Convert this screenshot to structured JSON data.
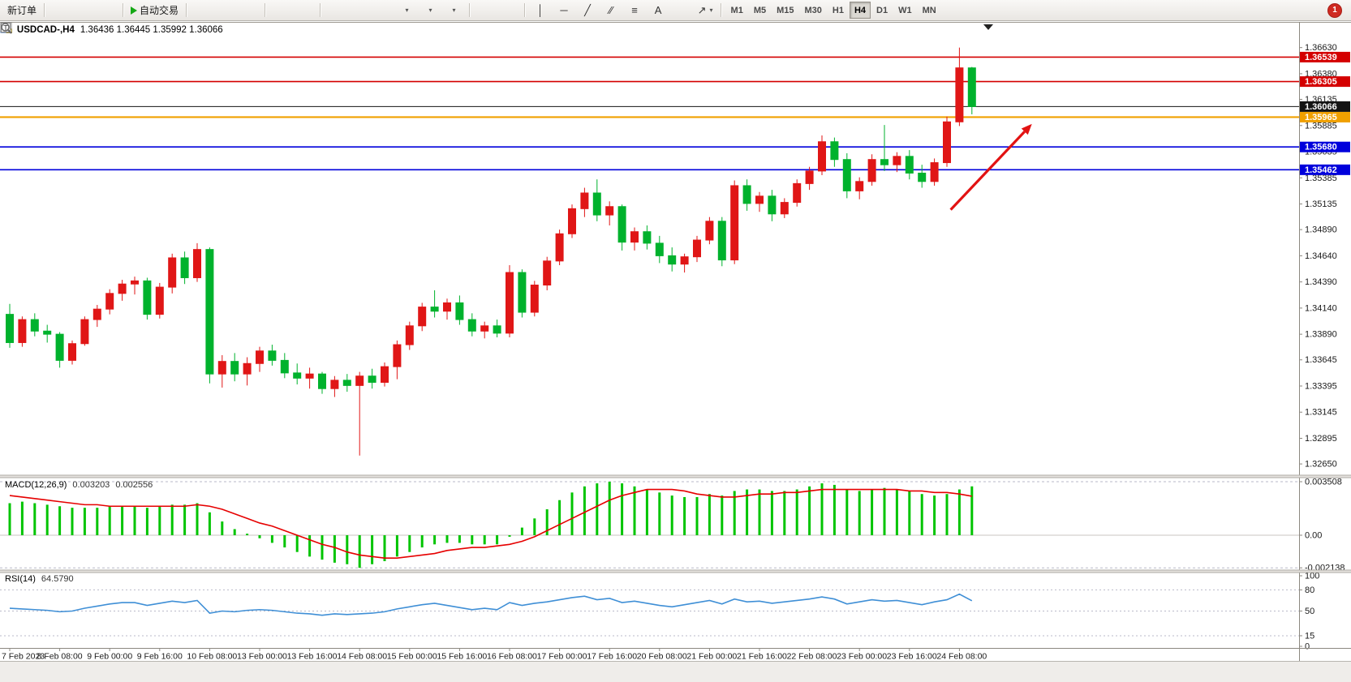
{
  "toolbar": {
    "new_order_label": "新订单",
    "auto_trading_label": "自动交易",
    "timeframes": [
      "M1",
      "M5",
      "M15",
      "M30",
      "H1",
      "H4",
      "D1",
      "W1",
      "MN"
    ],
    "active_timeframe": "H4",
    "notification_count": "1"
  },
  "chart": {
    "symbol_text": "USDCAD-,H4",
    "ohlc_text": "1.36436 1.36445 1.35992 1.36066"
  },
  "chart_data": {
    "main": {
      "type": "candlestick",
      "title": "USDCAD-,H4",
      "timeframe": "H4",
      "current_bar": {
        "open": 1.36436,
        "high": 1.36445,
        "low": 1.35992,
        "close": 1.36066
      },
      "bull_color": "#e01616",
      "bear_color": "#00b22d",
      "y_range": [
        1.3255,
        1.3686
      ],
      "y_ticks": [
        "1.36630",
        "1.36380",
        "1.36135",
        "1.35885",
        "1.35635",
        "1.35385",
        "1.35135",
        "1.34890",
        "1.34640",
        "1.34390",
        "1.34140",
        "1.33890",
        "1.33645",
        "1.33395",
        "1.33145",
        "1.32895",
        "1.32650"
      ],
      "x_labels": [
        "7 Feb 2023",
        "8 Feb 08:00",
        "9 Feb 00:00",
        "9 Feb 16:00",
        "10 Feb 08:00",
        "13 Feb 00:00",
        "13 Feb 16:00",
        "14 Feb 08:00",
        "15 Feb 00:00",
        "15 Feb 16:00",
        "16 Feb 08:00",
        "17 Feb 00:00",
        "17 Feb 16:00",
        "20 Feb 08:00",
        "21 Feb 00:00",
        "21 Feb 16:00",
        "22 Feb 08:00",
        "23 Feb 00:00",
        "23 Feb 16:00",
        "24 Feb 08:00"
      ],
      "x_label_every_n_bars": 4,
      "levels": [
        {
          "label": "1.36539",
          "price": 1.36539,
          "color": "#d40000"
        },
        {
          "label": "1.36305",
          "price": 1.36305,
          "color": "#d40000"
        },
        {
          "label": "1.35965",
          "price": 1.35965,
          "color": "#f0a000"
        },
        {
          "label": "1.35680",
          "price": 1.3568,
          "color": "#0000dc"
        },
        {
          "label": "1.35462",
          "price": 1.35462,
          "color": "#0000dc"
        }
      ],
      "current_price": {
        "label": "1.36066",
        "price": 1.36066,
        "color": "#141414"
      },
      "arrow_annotation": {
        "from": {
          "bar": 75.3,
          "price": 1.3508
        },
        "to": {
          "bar": 81.8,
          "price": 1.359
        },
        "color": "#e21212"
      },
      "candles": [
        [
          1.3408,
          1.3418,
          1.3376,
          1.3381
        ],
        [
          1.3381,
          1.3406,
          1.3377,
          1.3403
        ],
        [
          1.3403,
          1.3409,
          1.3387,
          1.3392
        ],
        [
          1.3392,
          1.3398,
          1.3381,
          1.3389
        ],
        [
          1.3389,
          1.3391,
          1.3357,
          1.3364
        ],
        [
          1.3364,
          1.3383,
          1.336,
          1.338
        ],
        [
          1.338,
          1.3406,
          1.3378,
          1.3403
        ],
        [
          1.3403,
          1.3417,
          1.3396,
          1.3413
        ],
        [
          1.3413,
          1.3432,
          1.3408,
          1.3428
        ],
        [
          1.3428,
          1.3441,
          1.3421,
          1.3437
        ],
        [
          1.3437,
          1.3444,
          1.3427,
          1.344
        ],
        [
          1.344,
          1.3443,
          1.3403,
          1.3408
        ],
        [
          1.3408,
          1.3438,
          1.3404,
          1.3434
        ],
        [
          1.3434,
          1.3466,
          1.3428,
          1.3462
        ],
        [
          1.3462,
          1.3468,
          1.3437,
          1.3443
        ],
        [
          1.3443,
          1.3476,
          1.3439,
          1.347
        ],
        [
          1.347,
          1.3472,
          1.3342,
          1.3351
        ],
        [
          1.3351,
          1.3369,
          1.3338,
          1.3363
        ],
        [
          1.3363,
          1.3371,
          1.3344,
          1.3351
        ],
        [
          1.3351,
          1.3367,
          1.334,
          1.3361
        ],
        [
          1.3361,
          1.3377,
          1.3353,
          1.3373
        ],
        [
          1.3373,
          1.3379,
          1.3359,
          1.3364
        ],
        [
          1.3364,
          1.3371,
          1.3347,
          1.3352
        ],
        [
          1.3352,
          1.3361,
          1.3341,
          1.3347
        ],
        [
          1.3347,
          1.3357,
          1.3337,
          1.3351
        ],
        [
          1.3351,
          1.3353,
          1.3332,
          1.3337
        ],
        [
          1.3337,
          1.3349,
          1.3329,
          1.3345
        ],
        [
          1.3345,
          1.3351,
          1.3334,
          1.334
        ],
        [
          1.334,
          1.3353,
          1.3273,
          1.3349
        ],
        [
          1.3349,
          1.3356,
          1.3337,
          1.3343
        ],
        [
          1.3343,
          1.3362,
          1.3339,
          1.3358
        ],
        [
          1.3358,
          1.3383,
          1.3346,
          1.3379
        ],
        [
          1.3379,
          1.3401,
          1.3374,
          1.3397
        ],
        [
          1.3397,
          1.3419,
          1.3392,
          1.3415
        ],
        [
          1.3415,
          1.3431,
          1.3405,
          1.3411
        ],
        [
          1.3411,
          1.3423,
          1.3403,
          1.3419
        ],
        [
          1.3419,
          1.3426,
          1.3398,
          1.3403
        ],
        [
          1.3403,
          1.3409,
          1.3387,
          1.3392
        ],
        [
          1.3392,
          1.3401,
          1.3385,
          1.3397
        ],
        [
          1.3397,
          1.3403,
          1.3386,
          1.339
        ],
        [
          1.339,
          1.3455,
          1.3386,
          1.3448
        ],
        [
          1.3448,
          1.3451,
          1.3405,
          1.341
        ],
        [
          1.341,
          1.344,
          1.3406,
          1.3436
        ],
        [
          1.3436,
          1.3463,
          1.3431,
          1.3459
        ],
        [
          1.3459,
          1.3489,
          1.3455,
          1.3485
        ],
        [
          1.3485,
          1.3513,
          1.3481,
          1.3509
        ],
        [
          1.3509,
          1.3529,
          1.3501,
          1.3524
        ],
        [
          1.3524,
          1.3537,
          1.3497,
          1.3503
        ],
        [
          1.3503,
          1.3516,
          1.3493,
          1.3511
        ],
        [
          1.3511,
          1.3513,
          1.3469,
          1.3477
        ],
        [
          1.3477,
          1.3491,
          1.3469,
          1.3487
        ],
        [
          1.3487,
          1.3493,
          1.347,
          1.3476
        ],
        [
          1.3476,
          1.3483,
          1.3457,
          1.3464
        ],
        [
          1.3464,
          1.3472,
          1.3449,
          1.3456
        ],
        [
          1.3456,
          1.3466,
          1.3448,
          1.3463
        ],
        [
          1.3463,
          1.3483,
          1.3458,
          1.3479
        ],
        [
          1.3479,
          1.3501,
          1.3475,
          1.3497
        ],
        [
          1.3497,
          1.3501,
          1.3454,
          1.346
        ],
        [
          1.346,
          1.3536,
          1.3456,
          1.3531
        ],
        [
          1.3531,
          1.3537,
          1.3507,
          1.3514
        ],
        [
          1.3514,
          1.3525,
          1.3506,
          1.3521
        ],
        [
          1.3521,
          1.3527,
          1.3497,
          1.3504
        ],
        [
          1.3504,
          1.3519,
          1.35,
          1.3515
        ],
        [
          1.3515,
          1.3537,
          1.3511,
          1.3533
        ],
        [
          1.3533,
          1.3549,
          1.3527,
          1.3545
        ],
        [
          1.3545,
          1.3579,
          1.3541,
          1.3573
        ],
        [
          1.3573,
          1.3577,
          1.3549,
          1.3556
        ],
        [
          1.3556,
          1.3562,
          1.3519,
          1.3526
        ],
        [
          1.3526,
          1.3539,
          1.3518,
          1.3535
        ],
        [
          1.3535,
          1.3561,
          1.3531,
          1.3556
        ],
        [
          1.3556,
          1.3589,
          1.3545,
          1.3551
        ],
        [
          1.3551,
          1.3563,
          1.3544,
          1.3559
        ],
        [
          1.3559,
          1.3565,
          1.3537,
          1.3543
        ],
        [
          1.3543,
          1.3551,
          1.3529,
          1.3535
        ],
        [
          1.3535,
          1.3557,
          1.3531,
          1.3553
        ],
        [
          1.3553,
          1.3597,
          1.3549,
          1.3592
        ],
        [
          1.3592,
          1.3663,
          1.3588,
          1.36436
        ],
        [
          1.36436,
          1.36445,
          1.35992,
          1.36066
        ]
      ]
    },
    "macd": {
      "type": "bar",
      "label": "MACD(12,26,9)",
      "value_main": "0.003203",
      "value_signal": "0.002556",
      "histogram_color": "#00c400",
      "signal_color": "#e60000",
      "axis_ticks": [
        "0.003508",
        "0.00",
        "-0.002138"
      ],
      "axis_values": [
        0.003508,
        0,
        -0.002138
      ],
      "main": [
        0.0021,
        0.0022,
        0.0021,
        0.002,
        0.0019,
        0.0018,
        0.0018,
        0.0018,
        0.0019,
        0.0019,
        0.0019,
        0.0018,
        0.0019,
        0.002,
        0.002,
        0.0021,
        0.0015,
        0.0009,
        0.0004,
        0.0001,
        -0.0002,
        -0.0005,
        -0.0008,
        -0.0011,
        -0.0014,
        -0.0016,
        -0.0018,
        -0.0019,
        -0.002138,
        -0.0019,
        -0.0017,
        -0.0014,
        -0.0011,
        -0.0008,
        -0.0006,
        -0.0005,
        -0.0005,
        -0.0006,
        -0.0006,
        -0.0006,
        -0.0001,
        0.0005,
        0.0011,
        0.0017,
        0.0023,
        0.0028,
        0.0032,
        0.0034,
        0.003508,
        0.0034,
        0.0032,
        0.003,
        0.0028,
        0.0026,
        0.0025,
        0.0025,
        0.0027,
        0.0026,
        0.0029,
        0.003,
        0.003,
        0.0029,
        0.0029,
        0.003,
        0.0032,
        0.0034,
        0.0033,
        0.003,
        0.0029,
        0.003,
        0.0031,
        0.003,
        0.0029,
        0.0027,
        0.0026,
        0.0027,
        0.003,
        0.003203
      ],
      "signal": [
        0.0026,
        0.0025,
        0.0024,
        0.0023,
        0.0022,
        0.0021,
        0.002,
        0.002,
        0.0019,
        0.0019,
        0.0019,
        0.0019,
        0.0019,
        0.0019,
        0.0019,
        0.002,
        0.0019,
        0.0017,
        0.0014,
        0.0011,
        0.0008,
        0.0006,
        0.0003,
        0.0,
        -0.0003,
        -0.0006,
        -0.0008,
        -0.0011,
        -0.0013,
        -0.0014,
        -0.0015,
        -0.0015,
        -0.0014,
        -0.0013,
        -0.0012,
        -0.001,
        -0.0009,
        -0.0008,
        -0.0008,
        -0.0007,
        -0.0006,
        -0.0004,
        -0.0001,
        0.0003,
        0.0007,
        0.0011,
        0.0015,
        0.0019,
        0.0023,
        0.0026,
        0.0028,
        0.003,
        0.003,
        0.003,
        0.0029,
        0.0027,
        0.0026,
        0.0025,
        0.0025,
        0.0026,
        0.0027,
        0.0027,
        0.0028,
        0.0028,
        0.0029,
        0.003,
        0.003,
        0.003,
        0.003,
        0.003,
        0.003,
        0.003,
        0.0029,
        0.0029,
        0.0028,
        0.0028,
        0.0027,
        0.002556
      ]
    },
    "rsi": {
      "type": "line",
      "label": "RSI(14)",
      "value": "64.5790",
      "line_color": "#3f8fd6",
      "levels": [
        80,
        50,
        15
      ],
      "axis_ticks": [
        "100",
        "80",
        "50",
        "15",
        "0"
      ],
      "values": [
        54,
        53,
        52,
        51,
        49,
        50,
        54,
        57,
        60,
        62,
        62,
        58,
        61,
        64,
        62,
        65,
        47,
        50,
        49,
        51,
        52,
        51,
        49,
        47,
        46,
        44,
        46,
        45,
        46,
        47,
        49,
        53,
        56,
        59,
        61,
        58,
        55,
        52,
        54,
        52,
        62,
        58,
        61,
        63,
        66,
        69,
        71,
        66,
        68,
        62,
        64,
        61,
        58,
        56,
        59,
        62,
        65,
        60,
        67,
        63,
        64,
        61,
        63,
        65,
        67,
        70,
        67,
        60,
        63,
        66,
        64,
        65,
        62,
        59,
        63,
        66,
        74,
        64.58
      ]
    }
  }
}
